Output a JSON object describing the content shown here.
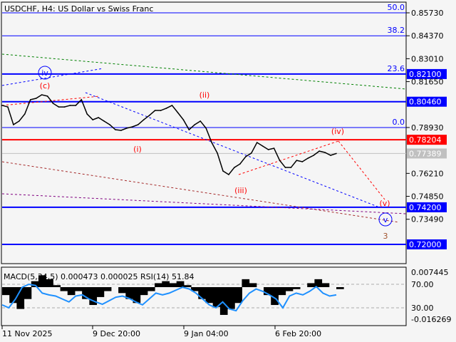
{
  "header": {
    "title": "USDCHF, H4:  US Dollar vs Swiss Franc"
  },
  "chart_data": {
    "type": "line",
    "symbol": "USDCHF",
    "timeframe": "H4",
    "price_axis": {
      "range": [
        0.712,
        0.864
      ],
      "ticks": [
        "0.85730",
        "0.84370",
        "0.83010",
        "0.81650",
        "0.78930",
        "0.76210",
        "0.74850",
        "0.73490"
      ]
    },
    "time_axis": {
      "ticks": [
        "11 Nov 2025",
        "9 Dec 20:00",
        "9 Jan 04:00",
        "6 Feb 20:00"
      ]
    },
    "price_series": [
      0.8024,
      0.8015,
      0.791,
      0.7931,
      0.7973,
      0.8058,
      0.8066,
      0.8087,
      0.8079,
      0.8036,
      0.8015,
      0.8015,
      0.8024,
      0.8024,
      0.8058,
      0.7973,
      0.7939,
      0.7952,
      0.7931,
      0.791,
      0.788,
      0.7876,
      0.7889,
      0.7897,
      0.791,
      0.7939,
      0.7965,
      0.7994,
      0.7994,
      0.8007,
      0.8024,
      0.7982,
      0.7939,
      0.788,
      0.791,
      0.7931,
      0.7889,
      0.7804,
      0.7741,
      0.7635,
      0.7614,
      0.7656,
      0.7677,
      0.772,
      0.7741,
      0.7804,
      0.7783,
      0.7762,
      0.777,
      0.7698,
      0.7656,
      0.7656,
      0.7698,
      0.769,
      0.7711,
      0.7728,
      0.7753,
      0.7745,
      0.7728,
      0.7739
    ],
    "levels": [
      {
        "price": 0.821,
        "label": "0.82100",
        "color": "#0000ff",
        "thick": true
      },
      {
        "price": 0.8046,
        "label": "0.80460",
        "color": "#0000ff",
        "thick": true
      },
      {
        "price": 0.78204,
        "label": "0.78204",
        "color": "#ff0000",
        "thick": true
      },
      {
        "price": 0.77389,
        "label": "0.77389",
        "color": "#c0c0c0",
        "thick": false
      },
      {
        "price": 0.742,
        "label": "0.74200",
        "color": "#0000ff",
        "thick": true
      },
      {
        "price": 0.72,
        "label": "0.72000",
        "color": "#0000ff",
        "thick": true
      }
    ],
    "fib_levels": [
      {
        "price": 0.8573,
        "label": "50.0"
      },
      {
        "price": 0.8437,
        "label": "38.2"
      },
      {
        "price": 0.821,
        "label": "23.6"
      },
      {
        "price": 0.7893,
        "label": "0.0"
      }
    ],
    "wave_labels": [
      {
        "text": "iv",
        "color": "#0000ff",
        "circled": true
      },
      {
        "text": "(c)",
        "color": "#ff0000"
      },
      {
        "text": "(i)",
        "color": "#ff0000"
      },
      {
        "text": "(ii)",
        "color": "#ff0000"
      },
      {
        "text": "(iii)",
        "color": "#ff0000"
      },
      {
        "text": "(iv)",
        "color": "#ff0000"
      },
      {
        "text": "(v)",
        "color": "#ff0000"
      },
      {
        "text": "v",
        "color": "#0000ff",
        "circled": true
      },
      {
        "text": "3",
        "color": "#a0522d"
      }
    ],
    "indicator": {
      "label": "MACD(5,34,5) 0.000473 0.000025 RSI(14) 51.84",
      "macd_axis": [
        "0.007445",
        "-0.016269"
      ],
      "rsi_levels": [
        "70.00",
        "30.00"
      ],
      "macd_hist": [
        -0.004,
        -0.008,
        -0.011,
        -0.006,
        0.003,
        0.006,
        0.004,
        0.001,
        -0.002,
        -0.004,
        -0.002,
        -0.006,
        -0.009,
        -0.005,
        -0.002,
        0,
        -0.003,
        -0.006,
        -0.008,
        -0.004,
        -0.002,
        0.002,
        0.003,
        0.002,
        0.003,
        0.001,
        -0.002,
        -0.006,
        -0.008,
        -0.01,
        -0.014,
        -0.011,
        -0.008,
        0.004,
        0.002,
        0,
        -0.004,
        -0.009,
        -0.004,
        -0.002,
        -0.001,
        0,
        0.002,
        0.004,
        0.002,
        0,
        -0.001
      ],
      "rsi": [
        35,
        30,
        45,
        65,
        70,
        68,
        55,
        52,
        50,
        45,
        40,
        50,
        52,
        45,
        40,
        36,
        42,
        48,
        50,
        46,
        40,
        35,
        45,
        55,
        52,
        55,
        60,
        65,
        62,
        55,
        45,
        35,
        30,
        40,
        28,
        25,
        42,
        55,
        62,
        58,
        52,
        45,
        30,
        50,
        55,
        52,
        58,
        66,
        55,
        50,
        52
      ]
    }
  }
}
